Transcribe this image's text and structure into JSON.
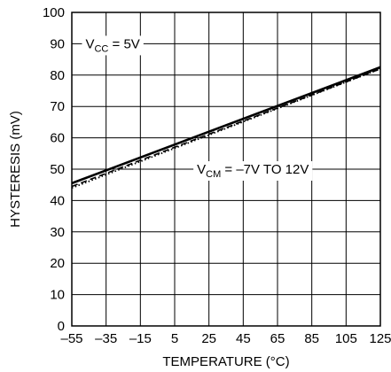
{
  "chart_data": {
    "type": "line",
    "xlabel": "TEMPERATURE (°C)",
    "ylabel": "HYSTERESIS (mV)",
    "xlim": [
      -55,
      125
    ],
    "ylim": [
      0,
      100
    ],
    "x_ticks": [
      -55,
      -35,
      -15,
      5,
      25,
      45,
      65,
      85,
      105,
      125
    ],
    "x_tick_labels": [
      "–55",
      "–35",
      "–15",
      "5",
      "25",
      "45",
      "65",
      "85",
      "105",
      "125"
    ],
    "y_ticks": [
      0,
      10,
      20,
      30,
      40,
      50,
      60,
      70,
      80,
      90,
      100
    ],
    "y_tick_labels": [
      "0",
      "10",
      "20",
      "30",
      "40",
      "50",
      "60",
      "70",
      "80",
      "90",
      "100"
    ],
    "grid": true,
    "series": [
      {
        "style": "solid",
        "x": [
          -55,
          125
        ],
        "y": [
          45.5,
          82.5
        ]
      },
      {
        "style": "dashed",
        "x": [
          -55,
          125
        ],
        "y": [
          44.5,
          82
        ]
      },
      {
        "style": "dotted",
        "x": [
          -55,
          125
        ],
        "y": [
          44,
          82
        ]
      }
    ],
    "annotations": [
      {
        "main": "V",
        "sub": "CC",
        "rest": " = 5V",
        "x": -47,
        "y": 90
      },
      {
        "main": "V",
        "sub": "CM",
        "rest": " = –7V TO 12V",
        "x": 18,
        "y": 50
      }
    ]
  }
}
